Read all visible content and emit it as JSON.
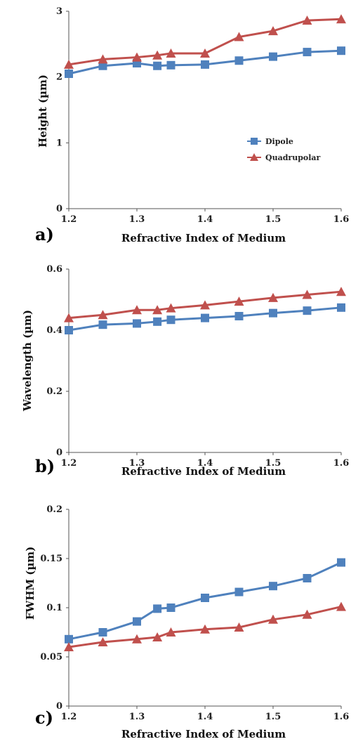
{
  "colors": {
    "dipole": "#4F81BD",
    "quadrupolar": "#C0504D"
  },
  "chart_data": [
    {
      "type": "line",
      "panel_label": "a)",
      "xlabel": "Refractive Index of Medium",
      "ylabel": "Height (µm)",
      "x": [
        1.2,
        1.25,
        1.3,
        1.33,
        1.35,
        1.4,
        1.45,
        1.5,
        1.55,
        1.6
      ],
      "xlim": [
        1.2,
        1.6
      ],
      "ylim": [
        0,
        3
      ],
      "x_ticks": [
        "1.2",
        "1.3",
        "1.4",
        "1.5",
        "1.6"
      ],
      "y_ticks": [
        "0",
        "1",
        "2",
        "3"
      ],
      "legend": "right",
      "series": [
        {
          "name": "Dipole",
          "marker": "square",
          "values": [
            2.05,
            2.17,
            2.21,
            2.17,
            2.18,
            2.19,
            2.25,
            2.31,
            2.38,
            2.4
          ]
        },
        {
          "name": "Quadrupolar",
          "marker": "triangle",
          "values": [
            2.19,
            2.27,
            2.3,
            2.33,
            2.36,
            2.36,
            2.61,
            2.7,
            2.86,
            2.88
          ]
        }
      ]
    },
    {
      "type": "line",
      "panel_label": "b)",
      "xlabel": "Refractive Index of Medium",
      "ylabel": "Wavelength (µm)",
      "x": [
        1.2,
        1.25,
        1.3,
        1.33,
        1.35,
        1.4,
        1.45,
        1.5,
        1.55,
        1.6
      ],
      "xlim": [
        1.2,
        1.6
      ],
      "ylim": [
        0,
        0.6
      ],
      "x_ticks": [
        "1.2",
        "1.3",
        "1.4",
        "1.5",
        "1.6"
      ],
      "y_ticks": [
        "0",
        "0.2",
        "0.4",
        "0.6"
      ],
      "series": [
        {
          "name": "Dipole",
          "marker": "square",
          "values": [
            0.4,
            0.418,
            0.422,
            0.428,
            0.434,
            0.44,
            0.446,
            0.456,
            0.464,
            0.474
          ]
        },
        {
          "name": "Quadrupolar",
          "marker": "triangle",
          "values": [
            0.44,
            0.45,
            0.466,
            0.466,
            0.472,
            0.482,
            0.494,
            0.506,
            0.516,
            0.526
          ]
        }
      ]
    },
    {
      "type": "line",
      "panel_label": "c)",
      "xlabel": "Refractive Index of Medium",
      "ylabel": "FWHM (µm)",
      "x": [
        1.2,
        1.25,
        1.3,
        1.33,
        1.35,
        1.4,
        1.45,
        1.5,
        1.55,
        1.6
      ],
      "xlim": [
        1.2,
        1.6
      ],
      "ylim": [
        0,
        0.2
      ],
      "x_ticks": [
        "1.2",
        "1.3",
        "1.4",
        "1.5",
        "1.6"
      ],
      "y_ticks": [
        "0",
        "0.05",
        "0.1",
        "0.15",
        "0.2"
      ],
      "series": [
        {
          "name": "Dipole",
          "marker": "square",
          "values": [
            0.068,
            0.075,
            0.086,
            0.099,
            0.1,
            0.11,
            0.116,
            0.122,
            0.13,
            0.146
          ]
        },
        {
          "name": "Quadrupolar",
          "marker": "triangle",
          "values": [
            0.06,
            0.065,
            0.068,
            0.07,
            0.075,
            0.078,
            0.08,
            0.088,
            0.093,
            0.101
          ]
        }
      ]
    }
  ]
}
